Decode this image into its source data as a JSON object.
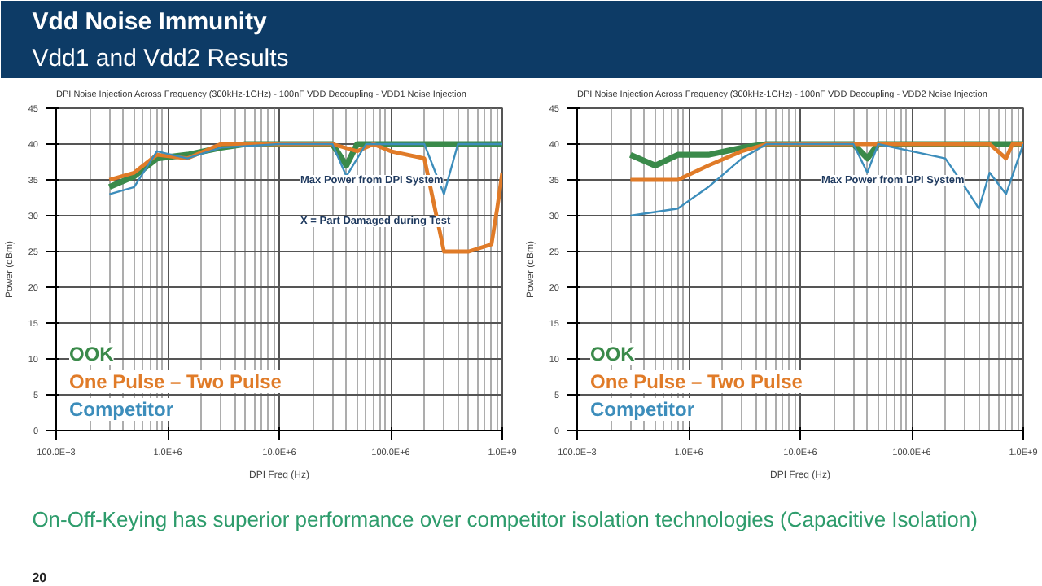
{
  "chart_data": [
    {
      "type": "other",
      "title": "Vdd Noise Immunity",
      "subtitle": "Vdd1 and Vdd2 Results",
      "annotations": [
        "On-Off-Keying has superior performance over competitor isolation technologies (Capacitive Isolation)",
        "20"
      ]
    },
    {
      "type": "line",
      "title": "DPI Noise Injection Across Frequency (300kHz-1GHz) - 100nF VDD Decoupling - VDD1 Noise Injection",
      "xlabel": "DPI Freq (Hz)",
      "ylabel": "Power (dBm)",
      "log": "x",
      "grid": true,
      "legend": "bottom left",
      "xlim": [
        100000,
        1000000000
      ],
      "xticks": [
        {
          "value": 100000,
          "label": "100.0E+3"
        },
        {
          "value": 1000000,
          "label": "1.0E+6"
        },
        {
          "value": 10000000,
          "label": "10.0E+6"
        },
        {
          "value": 100000000,
          "label": "100.0E+6"
        },
        {
          "value": 1000000000,
          "label": "1.0E+9"
        }
      ],
      "ylim": [
        0,
        45
      ],
      "yticks": [
        0,
        5,
        10,
        15,
        20,
        25,
        30,
        35,
        40,
        45
      ],
      "annotations": [
        "Max Power from DPI System",
        "X = Part Damaged during Test"
      ],
      "series": [
        {
          "name": "OOK",
          "color": "#3a8a4a",
          "x": [
            300000,
            500000,
            800000,
            1500000,
            3000000,
            5000000,
            10000000,
            30000000,
            40000000,
            50000000,
            100000000,
            300000000,
            1000000000
          ],
          "values": [
            34,
            35.5,
            38,
            38.5,
            39.5,
            40,
            40,
            40,
            37,
            40,
            40,
            40,
            40
          ]
        },
        {
          "name": "One Pulse – Two Pulse",
          "color": "#e07b28",
          "x": [
            300000,
            500000,
            800000,
            1500000,
            3000000,
            10000000,
            30000000,
            50000000,
            70000000,
            100000000,
            200000000,
            300000000,
            500000000,
            800000000,
            900000000,
            1000000000
          ],
          "values": [
            35,
            36,
            38.5,
            38,
            40,
            40,
            40,
            39,
            40,
            39,
            38,
            25,
            25,
            26,
            31,
            36
          ]
        },
        {
          "name": "Competitor",
          "color": "#3c8dbb",
          "x": [
            300000,
            500000,
            800000,
            1500000,
            3000000,
            10000000,
            30000000,
            40000000,
            60000000,
            100000000,
            200000000,
            300000000,
            400000000,
            1000000000
          ],
          "values": [
            33,
            34,
            39,
            38,
            39.5,
            40,
            40,
            35.5,
            40,
            40,
            40,
            33,
            40,
            40
          ]
        }
      ]
    },
    {
      "type": "line",
      "title": "DPI Noise Injection Across Frequency (300kHz-1GHz) - 100nF VDD Decoupling - VDD2 Noise Injection",
      "xlabel": "DPI Freq (Hz)",
      "ylabel": "Power (dBm)",
      "log": "x",
      "grid": true,
      "legend": "bottom left",
      "xlim": [
        100000,
        1000000000
      ],
      "xticks": [
        {
          "value": 100000,
          "label": "100.0E+3"
        },
        {
          "value": 1000000,
          "label": "1.0E+6"
        },
        {
          "value": 10000000,
          "label": "10.0E+6"
        },
        {
          "value": 100000000,
          "label": "100.0E+6"
        },
        {
          "value": 1000000000,
          "label": "1.0E+9"
        }
      ],
      "ylim": [
        0,
        45
      ],
      "yticks": [
        0,
        5,
        10,
        15,
        20,
        25,
        30,
        35,
        40,
        45
      ],
      "annotations": [
        "Max Power from DPI System"
      ],
      "series": [
        {
          "name": "OOK",
          "color": "#3a8a4a",
          "x": [
            300000,
            500000,
            800000,
            1500000,
            3000000,
            5000000,
            10000000,
            30000000,
            40000000,
            50000000,
            100000000,
            500000000,
            1000000000
          ],
          "values": [
            38.5,
            37,
            38.5,
            38.5,
            39.5,
            40,
            40,
            40,
            38,
            40,
            40,
            40,
            40
          ]
        },
        {
          "name": "One Pulse – Two Pulse",
          "color": "#e07b28",
          "x": [
            300000,
            800000,
            1500000,
            3000000,
            5000000,
            10000000,
            100000000,
            500000000,
            700000000,
            800000000,
            1000000000
          ],
          "values": [
            35,
            35,
            37,
            39,
            40,
            40,
            40,
            40,
            38,
            40,
            40
          ]
        },
        {
          "name": "Competitor",
          "color": "#3c8dbb",
          "x": [
            300000,
            800000,
            1500000,
            3000000,
            5000000,
            30000000,
            40000000,
            50000000,
            100000000,
            200000000,
            300000000,
            400000000,
            500000000,
            700000000,
            1000000000
          ],
          "values": [
            30,
            31,
            34,
            38,
            40,
            40,
            36,
            40,
            39,
            38,
            34,
            31,
            36,
            33,
            40
          ]
        }
      ]
    }
  ]
}
